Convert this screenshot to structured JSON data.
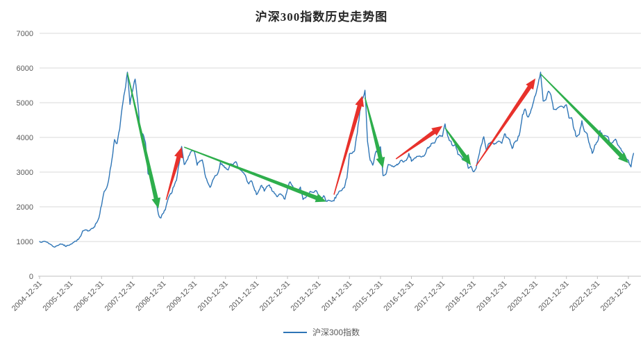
{
  "title": "沪深300指数历史走势图",
  "legend": {
    "label": "沪深300指数"
  },
  "colors": {
    "line": "#2E75B6",
    "rise_arrow": "#E8312B",
    "fall_arrow": "#2EAE4C",
    "grid": "#D9D9D9",
    "axis": "#BFBFBF",
    "tick_label": "#595959",
    "title_text": "#262626"
  },
  "chart_data": {
    "type": "line",
    "title": "沪深300指数历史走势图",
    "series_name": "沪深300指数",
    "xlabel": "",
    "ylabel": "",
    "ylim": [
      0,
      7000
    ],
    "y_ticks": [
      0,
      1000,
      2000,
      3000,
      4000,
      5000,
      6000,
      7000
    ],
    "grid": "horizontal",
    "legend_position": "bottom-center",
    "x_tick_labels": [
      "2004-12-31",
      "2005-12-31",
      "2006-12-31",
      "2007-12-31",
      "2008-12-31",
      "2009-12-31",
      "2010-12-31",
      "2011-12-31",
      "2012-12-31",
      "2013-12-31",
      "2014-12-31",
      "2015-12-31",
      "2016-12-31",
      "2017-12-31",
      "2018-12-31",
      "2019-12-31",
      "2020-12-31",
      "2021-12-31",
      "2022-12-31",
      "2023-12-31"
    ],
    "series_start": "2004-12",
    "series_interval": "monthly",
    "monthly_values": [
      1000,
      982,
      1008,
      978,
      930,
      868,
      842,
      888,
      932,
      918,
      858,
      888,
      924,
      968,
      1012,
      1058,
      1162,
      1312,
      1332,
      1308,
      1368,
      1412,
      1532,
      1686,
      2042,
      2442,
      2552,
      2888,
      3356,
      3938,
      3822,
      4232,
      4872,
      5330,
      5880,
      4950,
      5340,
      5680,
      5020,
      4160,
      4100,
      3850,
      2950,
      2880,
      2420,
      2290,
      1790,
      1680,
      1820,
      2020,
      2280,
      2380,
      2580,
      2760,
      3230,
      3740,
      3220,
      3340,
      3480,
      3620,
      3580,
      3200,
      3320,
      3350,
      2950,
      2720,
      2560,
      2760,
      2900,
      2960,
      3280,
      3180,
      3130,
      3060,
      3240,
      3220,
      3300,
      3100,
      3050,
      2980,
      2840,
      2660,
      2750,
      2550,
      2350,
      2480,
      2620,
      2450,
      2590,
      2630,
      2460,
      2380,
      2290,
      2370,
      2330,
      2220,
      2520,
      2720,
      2600,
      2480,
      2470,
      2570,
      2210,
      2260,
      2330,
      2440,
      2410,
      2470,
      2330,
      2220,
      2320,
      2160,
      2190,
      2160,
      2170,
      2340,
      2450,
      2470,
      2550,
      2830,
      3530,
      3540,
      3620,
      4120,
      4750,
      5110,
      5360,
      3880,
      3340,
      3200,
      3540,
      3640,
      3730,
      2900,
      2930,
      3220,
      3200,
      3150,
      3190,
      3250,
      3340,
      3290,
      3340,
      3540,
      3310,
      3390,
      3450,
      3460,
      3440,
      3480,
      3670,
      3740,
      3830,
      3840,
      4000,
      4060,
      4030,
      4390,
      4050,
      3900,
      3760,
      3800,
      3510,
      3460,
      3340,
      3440,
      3110,
      3170,
      3010,
      3100,
      3450,
      3770,
      4020,
      3630,
      3830,
      3870,
      3800,
      3860,
      3890,
      3830,
      4100,
      4000,
      3940,
      3680,
      3860,
      3910,
      4160,
      4660,
      4820,
      4590,
      4700,
      4960,
      5210,
      5520,
      5880,
      5050,
      5080,
      5330,
      5220,
      4810,
      4800,
      4870,
      4900,
      4850,
      4940,
      4560,
      4570,
      4220,
      4020,
      4090,
      4480,
      4170,
      4110,
      3800,
      3540,
      3780,
      3870,
      4200,
      4030,
      4050,
      4030,
      3800,
      3860,
      3950,
      3770,
      3690,
      3560,
      3420,
      3340,
      3150,
      3540
    ],
    "trend_arrows": [
      {
        "type": "fall",
        "from": {
          "date": "2007-10",
          "value": 5860
        },
        "to": {
          "date": "2008-10",
          "value": 1950
        }
      },
      {
        "type": "rise",
        "from": {
          "date": "2009-01",
          "value": 2200
        },
        "to": {
          "date": "2009-07",
          "value": 3720
        }
      },
      {
        "type": "fall",
        "from": {
          "date": "2009-08",
          "value": 3720
        },
        "to": {
          "date": "2014-03",
          "value": 2150
        }
      },
      {
        "type": "rise",
        "from": {
          "date": "2014-06",
          "value": 2350
        },
        "to": {
          "date": "2015-05",
          "value": 5200
        }
      },
      {
        "type": "fall",
        "from": {
          "date": "2015-06",
          "value": 5150
        },
        "to": {
          "date": "2016-01",
          "value": 3120
        }
      },
      {
        "type": "rise",
        "from": {
          "date": "2016-06",
          "value": 3380
        },
        "to": {
          "date": "2017-12",
          "value": 4330
        }
      },
      {
        "type": "fall",
        "from": {
          "date": "2018-01",
          "value": 4280
        },
        "to": {
          "date": "2018-11",
          "value": 3200
        }
      },
      {
        "type": "rise",
        "from": {
          "date": "2019-01",
          "value": 3180
        },
        "to": {
          "date": "2020-12",
          "value": 5700
        }
      },
      {
        "type": "fall",
        "from": {
          "date": "2021-02",
          "value": 5830
        },
        "to": {
          "date": "2023-12",
          "value": 3260
        }
      }
    ]
  }
}
